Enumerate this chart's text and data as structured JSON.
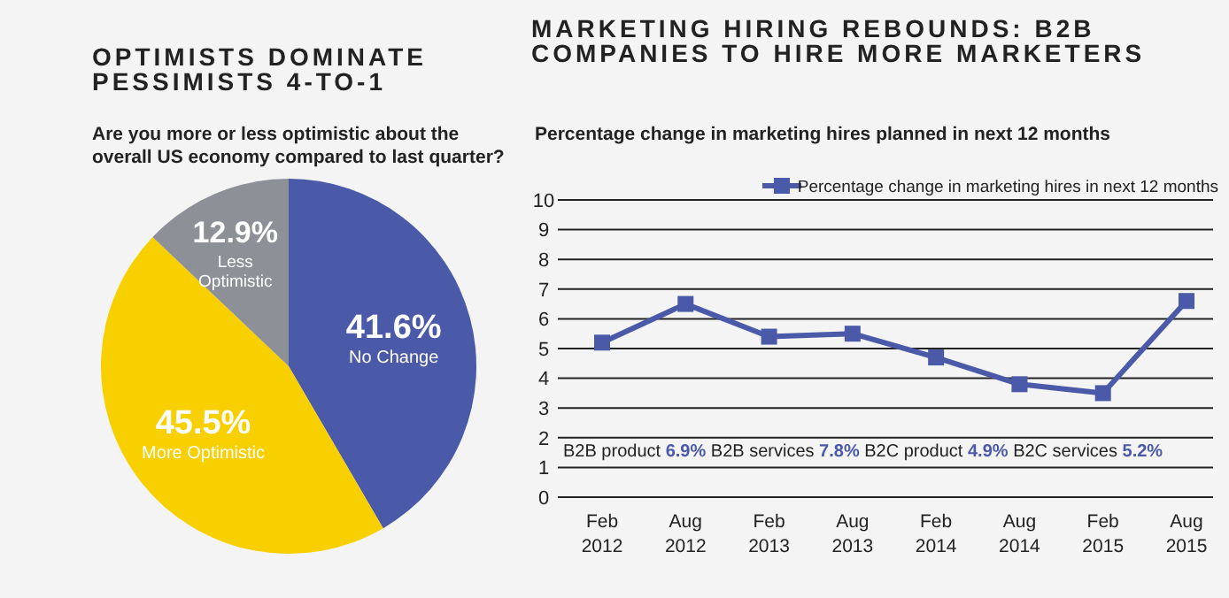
{
  "chart_data": [
    {
      "type": "pie",
      "title": "OPTIMISTS DOMINATE PESSIMISTS 4-TO-1",
      "subtitle": "Are you more or less optimistic about the overall US economy compared to last quarter?",
      "categories": [
        "No Change",
        "More Optimistic",
        "Less Optimistic"
      ],
      "values": [
        41.6,
        45.5,
        12.9
      ],
      "colors": [
        "#4a5aa8",
        "#f8d000",
        "#8d9197"
      ],
      "value_labels": [
        "41.6%",
        "45.5%",
        "12.9%"
      ]
    },
    {
      "type": "line",
      "title": "MARKETING HIRING REBOUNDS: B2B COMPANIES TO HIRE MORE MARKETERS",
      "subtitle": "Percentage change in marketing hires planned in next 12 months",
      "categories": [
        "Feb 2012",
        "Aug 2012",
        "Feb 2013",
        "Aug 2013",
        "Feb 2014",
        "Aug 2014",
        "Feb 2015",
        "Aug 2015"
      ],
      "series": [
        {
          "name": "Percentage change in marketing hires in next 12 months",
          "color": "#4a5aa8",
          "values": [
            5.2,
            6.5,
            5.4,
            5.5,
            4.7,
            3.8,
            3.5,
            6.6
          ]
        }
      ],
      "ylim": [
        0,
        10
      ],
      "yticks": [
        0,
        1,
        2,
        3,
        4,
        5,
        6,
        7,
        8,
        9,
        10
      ],
      "grid": "y",
      "legend": "top right",
      "marker": "square",
      "line_style": "solid",
      "annotations": [
        "B2B product 6.9% B2B services 7.8% B2C product 4.9% B2C services 5.2%"
      ]
    }
  ]
}
